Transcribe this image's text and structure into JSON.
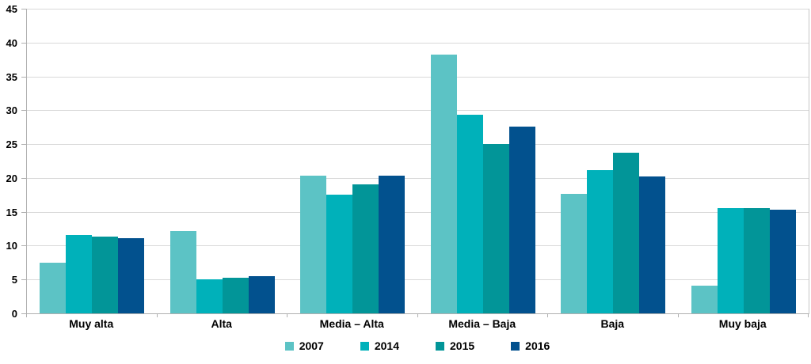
{
  "chart_data": {
    "type": "bar",
    "title": "",
    "xlabel": "",
    "ylabel": "",
    "categories": [
      "Muy alta",
      "Alta",
      "Media – Alta",
      "Media – Baja",
      "Baja",
      "Muy baja"
    ],
    "series": [
      {
        "name": "2007",
        "color": "#5cc3c5",
        "values": [
          7.5,
          12.2,
          20.3,
          38.2,
          17.6,
          4.1
        ]
      },
      {
        "name": "2014",
        "color": "#00b1ba",
        "values": [
          11.6,
          5.0,
          17.5,
          29.3,
          21.2,
          15.5
        ]
      },
      {
        "name": "2015",
        "color": "#029598",
        "values": [
          11.3,
          5.3,
          19.1,
          25.0,
          23.7,
          15.5
        ]
      },
      {
        "name": "2016",
        "color": "#02518e",
        "values": [
          11.1,
          5.5,
          20.3,
          27.6,
          20.2,
          15.3
        ]
      }
    ],
    "ylim": [
      0,
      45
    ],
    "y_tick_step": 5,
    "y_tick_labels": [
      "0",
      "5",
      "10",
      "15",
      "20",
      "25",
      "30",
      "35",
      "40",
      "45"
    ],
    "grid": "horizontal",
    "legend_position": "bottom",
    "colors": {
      "axis": "#b0b0b0",
      "gridline": "#d9d9d9",
      "text": "#000000",
      "background": "#ffffff"
    }
  }
}
